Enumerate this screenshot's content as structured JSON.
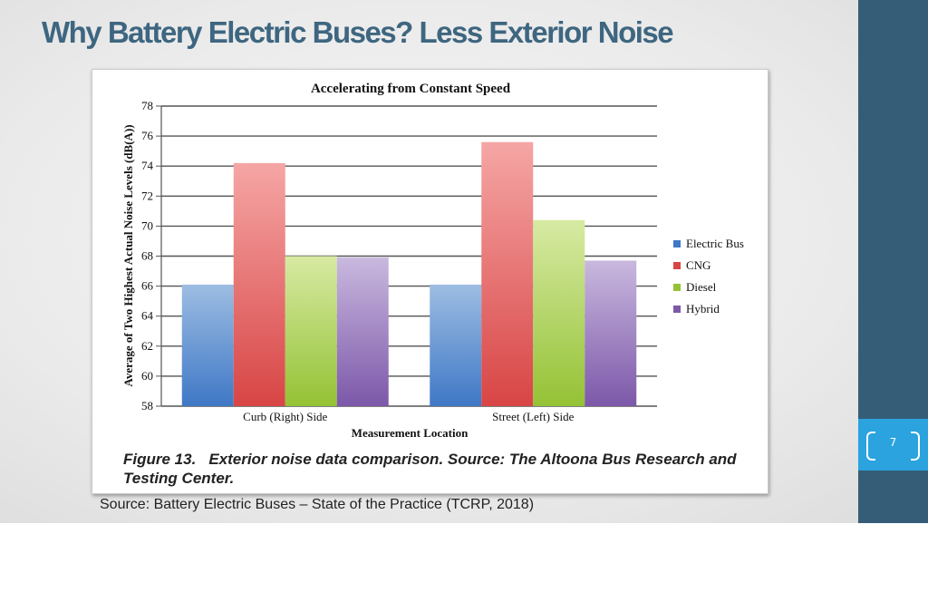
{
  "slide": {
    "title_bold": "Why Battery Electric Buses?",
    "title_rest": "Less Exterior Noise",
    "page_number": "7",
    "source_text": "Source: Battery Electric Buses – State of the Practice (TCRP, 2018)",
    "caption_label": "Figure 13.",
    "caption_text": "Exterior noise data comparison. Source: The Altoona Bus Research and Testing Center.",
    "colors": {
      "sidebar": "#355d78",
      "page_box": "#2aa3df",
      "title": "#3e6680"
    }
  },
  "chart_data": {
    "type": "bar",
    "title": "Accelerating from Constant Speed",
    "xlabel": "Measurement Location",
    "ylabel": "Average of Two Highest Actual Noise Levels (dB(A))",
    "categories": [
      "Curb (Right) Side",
      "Street (Left) Side"
    ],
    "series": [
      {
        "name": "Electric Bus",
        "values": [
          66.1,
          66.1
        ],
        "color_top": "#9dbde2",
        "color_bottom": "#3f78c6"
      },
      {
        "name": "CNG",
        "values": [
          74.2,
          75.6
        ],
        "color_top": "#f5a6a5",
        "color_bottom": "#d84545"
      },
      {
        "name": "Diesel",
        "values": [
          68.0,
          70.4
        ],
        "color_top": "#d7eaa3",
        "color_bottom": "#94c235"
      },
      {
        "name": "Hybrid",
        "values": [
          67.9,
          67.7
        ],
        "color_top": "#c9b8de",
        "color_bottom": "#7c58a9"
      }
    ],
    "ylim": [
      58,
      78
    ],
    "yticks": [
      "58",
      "60",
      "62",
      "64",
      "66",
      "68",
      "70",
      "72",
      "74",
      "76",
      "78"
    ],
    "grid": true,
    "legend_position": "right"
  }
}
